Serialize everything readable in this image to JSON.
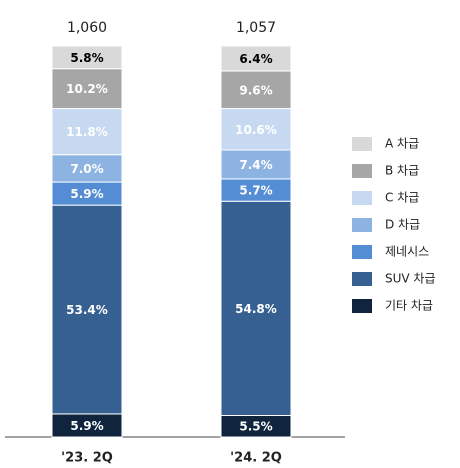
{
  "chart_data": {
    "type": "stacked_bar",
    "categories": [
      "'23. 2Q",
      "'24. 2Q"
    ],
    "totals": {
      "values": [
        1060,
        1057
      ],
      "value_labels": [
        "1,060",
        "1,057"
      ]
    },
    "ylim": [
      0,
      100
    ],
    "series": [
      {
        "name": "A 차급",
        "color": "#d9d9d9",
        "label_color": "#000000",
        "values": [
          5.8,
          6.4
        ],
        "value_labels": [
          "5.8%",
          "6.4%"
        ]
      },
      {
        "name": "B 차급",
        "color": "#a6a6a6",
        "label_color": "#ffffff",
        "values": [
          10.2,
          9.6
        ],
        "value_labels": [
          "10.2%",
          "9.6%"
        ]
      },
      {
        "name": "C 차급",
        "color": "#c6d9f1",
        "label_color": "#ffffff",
        "values": [
          11.8,
          10.6
        ],
        "value_labels": [
          "11.8%",
          "10.6%"
        ]
      },
      {
        "name": "D 차급",
        "color": "#8db3e2",
        "label_color": "#ffffff",
        "values": [
          7.0,
          7.4
        ],
        "value_labels": [
          "7.0%",
          "7.4%"
        ]
      },
      {
        "name": "제네시스",
        "color": "#548dd4",
        "label_color": "#ffffff",
        "values": [
          5.9,
          5.7
        ],
        "value_labels": [
          "5.9%",
          "5.7%"
        ]
      },
      {
        "name": "SUV 차급",
        "color": "#376092",
        "label_color": "#ffffff",
        "values": [
          53.4,
          54.8
        ],
        "value_labels": [
          "53.4%",
          "54.8%"
        ]
      },
      {
        "name": "기타 차급",
        "color": "#10243e",
        "label_color": "#ffffff",
        "values": [
          5.9,
          5.5
        ],
        "value_labels": [
          "5.9%",
          "5.5%"
        ]
      }
    ]
  }
}
